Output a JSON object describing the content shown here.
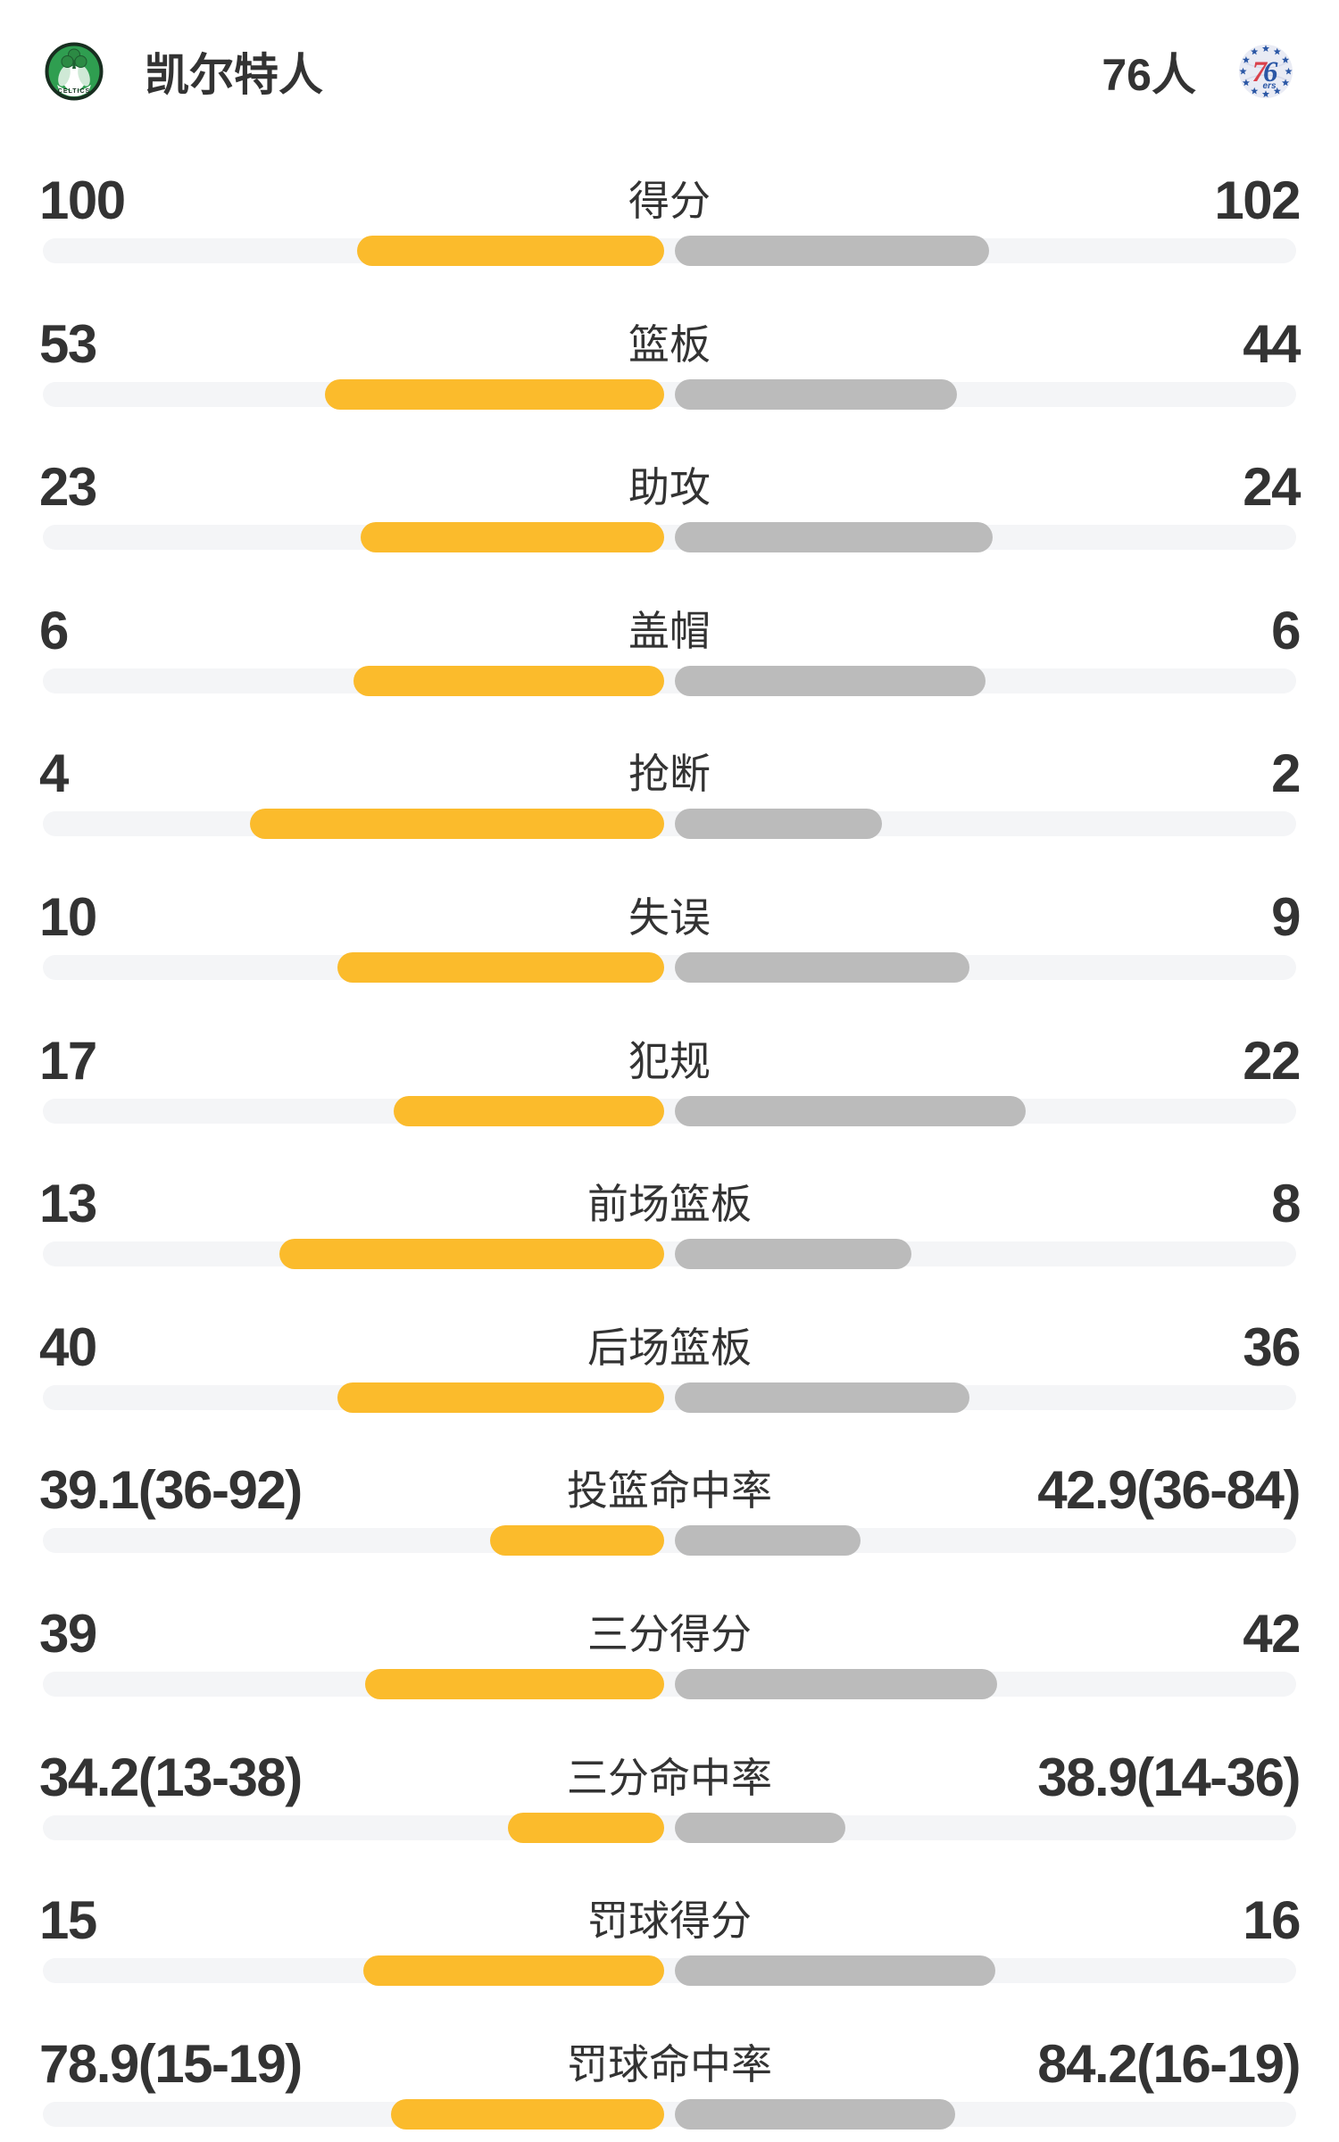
{
  "header": {
    "home_team": "凯尔特人",
    "away_team": "76人",
    "home_logo": "celtics-crest",
    "away_logo": "76ers-crest"
  },
  "colors": {
    "home_bar": "#FBBB2C",
    "away_bar": "#BBBBBB",
    "track": "#F4F5F7",
    "text": "#333333",
    "celtics_green": "#2F9E50",
    "sixers_blue": "#2B57A5",
    "sixers_red": "#D9414B"
  },
  "stats": [
    {
      "label": "得分",
      "home": "100",
      "away": "102",
      "home_bar_pct": 49.5,
      "away_bar_pct": 50.5
    },
    {
      "label": "篮板",
      "home": "53",
      "away": "44",
      "home_bar_pct": 54.6,
      "away_bar_pct": 45.4
    },
    {
      "label": "助攻",
      "home": "23",
      "away": "24",
      "home_bar_pct": 48.9,
      "away_bar_pct": 51.1
    },
    {
      "label": "盖帽",
      "home": "6",
      "away": "6",
      "home_bar_pct": 50.0,
      "away_bar_pct": 50.0
    },
    {
      "label": "抢断",
      "home": "4",
      "away": "2",
      "home_bar_pct": 66.7,
      "away_bar_pct": 33.3
    },
    {
      "label": "失误",
      "home": "10",
      "away": "9",
      "home_bar_pct": 52.6,
      "away_bar_pct": 47.4
    },
    {
      "label": "犯规",
      "home": "17",
      "away": "22",
      "home_bar_pct": 43.6,
      "away_bar_pct": 56.4
    },
    {
      "label": "前场篮板",
      "home": "13",
      "away": "8",
      "home_bar_pct": 61.9,
      "away_bar_pct": 38.1
    },
    {
      "label": "后场篮板",
      "home": "40",
      "away": "36",
      "home_bar_pct": 52.6,
      "away_bar_pct": 47.4
    },
    {
      "label": "投篮命中率",
      "home": "39.1(36-92)",
      "away": "42.9(36-84)",
      "home_bar_pct": 28.0,
      "away_bar_pct": 29.9
    },
    {
      "label": "三分得分",
      "home": "39",
      "away": "42",
      "home_bar_pct": 48.1,
      "away_bar_pct": 51.9
    },
    {
      "label": "三分命中率",
      "home": "34.2(13-38)",
      "away": "38.9(14-36)",
      "home_bar_pct": 25.1,
      "away_bar_pct": 27.4
    },
    {
      "label": "罚球得分",
      "home": "15",
      "away": "16",
      "home_bar_pct": 48.4,
      "away_bar_pct": 51.6
    },
    {
      "label": "罚球命中率",
      "home": "78.9(15-19)",
      "away": "84.2(16-19)",
      "home_bar_pct": 44.0,
      "away_bar_pct": 45.1
    }
  ],
  "chart_data": {
    "type": "bar",
    "orientation": "horizontal-paired-from-center",
    "categories": [
      "得分",
      "篮板",
      "助攻",
      "盖帽",
      "抢断",
      "失误",
      "犯规",
      "前场篮板",
      "后场篮板",
      "投篮命中率",
      "三分得分",
      "三分命中率",
      "罚球得分",
      "罚球命中率"
    ],
    "series": [
      {
        "name": "凯尔特人",
        "color": "#FBBB2C",
        "values": [
          100,
          53,
          23,
          6,
          4,
          10,
          17,
          13,
          40,
          39.1,
          39,
          34.2,
          15,
          78.9
        ]
      },
      {
        "name": "76人",
        "color": "#BBBBBB",
        "values": [
          102,
          44,
          24,
          6,
          2,
          9,
          22,
          8,
          36,
          42.9,
          42,
          38.9,
          16,
          84.2
        ]
      }
    ],
    "value_label_left": [
      "100",
      "53",
      "23",
      "6",
      "4",
      "10",
      "17",
      "13",
      "40",
      "39.1(36-92)",
      "39",
      "34.2(13-38)",
      "15",
      "78.9(15-19)"
    ],
    "value_label_right": [
      "102",
      "44",
      "24",
      "6",
      "2",
      "9",
      "22",
      "8",
      "36",
      "42.9(36-84)",
      "42",
      "38.9(14-36)",
      "16",
      "84.2(16-19)"
    ],
    "legend_position": "none",
    "grid": false
  }
}
